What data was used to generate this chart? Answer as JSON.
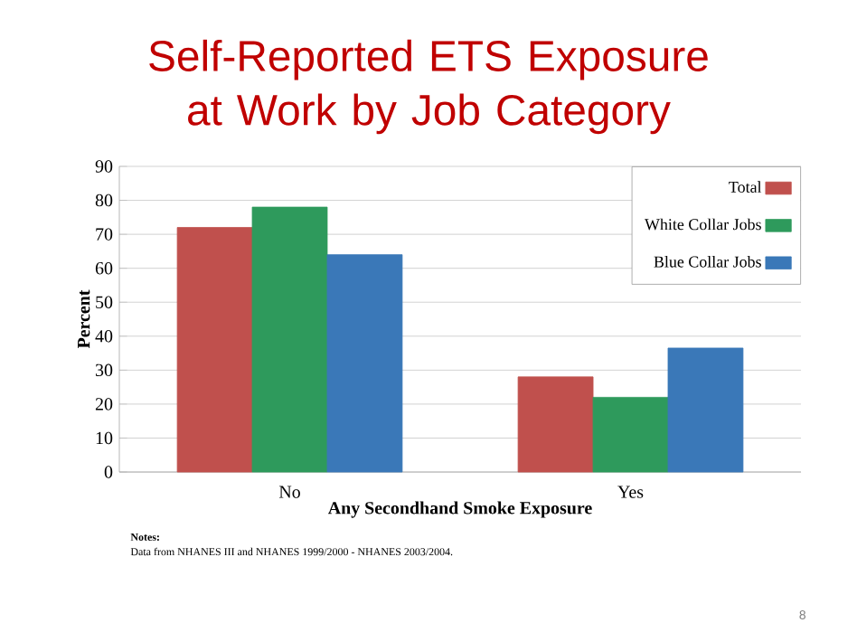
{
  "chart_data": {
    "type": "bar",
    "title": "Self-Reported ETS Exposure at Work by Job Category",
    "xlabel": "Any Secondhand Smoke Exposure",
    "ylabel": "Percent",
    "categories": [
      "No",
      "Yes"
    ],
    "series": [
      {
        "name": "Total",
        "color": "#c0504d",
        "values": [
          72,
          28
        ]
      },
      {
        "name": "White Collar Jobs",
        "color": "#2e9a5c",
        "values": [
          78,
          22
        ]
      },
      {
        "name": "Blue Collar Jobs",
        "color": "#3a78b8",
        "values": [
          64,
          36.5
        ]
      }
    ],
    "ylim": [
      0,
      90
    ],
    "yticks": [
      0,
      10,
      20,
      30,
      40,
      50,
      60,
      70,
      80,
      90
    ],
    "grid": "y",
    "legend": "top right",
    "annotations": [
      "Notes:",
      "Data from NHANES III and NHANES 1999/2000 - NHANES 2003/2004.",
      "8"
    ]
  }
}
